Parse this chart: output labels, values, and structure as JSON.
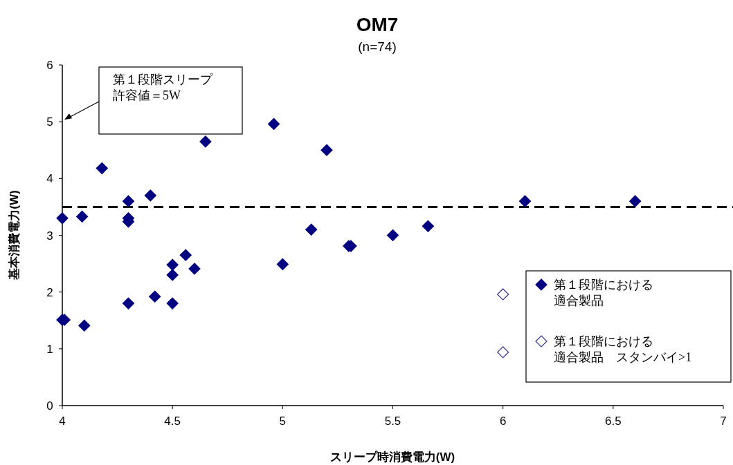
{
  "chart_data": {
    "type": "scatter",
    "title": "OM7",
    "subtitle": "(n=74)",
    "xlabel": "スリープ時消費電力(W)",
    "ylabel": "基本消費電力(W)",
    "xlim": [
      4,
      7
    ],
    "xticks": [
      4,
      4.5,
      5,
      5.5,
      6,
      6.5,
      7
    ],
    "ylim": [
      0,
      6
    ],
    "yticks": [
      0,
      1,
      2,
      3,
      4,
      5,
      6
    ],
    "grid": false,
    "legend": "bottom right",
    "marker": "diamond",
    "ref_lines": [
      {
        "axis": "y",
        "value": 3.5,
        "color": "#000000",
        "line_style": "dashed"
      }
    ],
    "annotations": [
      "第１段階スリープ許容値＝5W"
    ],
    "series": [
      {
        "name": "第１段階における適合製品",
        "color": "#000080",
        "x": [
          4.0,
          4.09,
          4.18,
          4.3,
          4.3,
          4.3,
          4.4,
          4.65,
          4.96,
          5.2,
          5.13,
          5.66,
          5.5,
          5.3,
          5.31,
          5.0,
          4.56,
          4.5,
          4.5,
          4.6,
          4.42,
          4.3,
          4.5,
          4.0,
          4.01,
          4.1,
          6.1,
          6.6
        ],
        "values": [
          3.3,
          3.33,
          4.18,
          3.6,
          3.3,
          3.24,
          3.7,
          4.65,
          4.96,
          4.5,
          3.1,
          3.16,
          3.0,
          2.81,
          2.81,
          2.49,
          2.65,
          2.48,
          2.3,
          2.41,
          1.92,
          1.8,
          1.8,
          1.51,
          1.51,
          1.41,
          3.6,
          3.6
        ]
      },
      {
        "name": "第１段階における適合製品　スタンバイ>1",
        "color": "#333399",
        "x": [
          6.0,
          6.0
        ],
        "values": [
          1.96,
          0.94
        ]
      }
    ]
  }
}
